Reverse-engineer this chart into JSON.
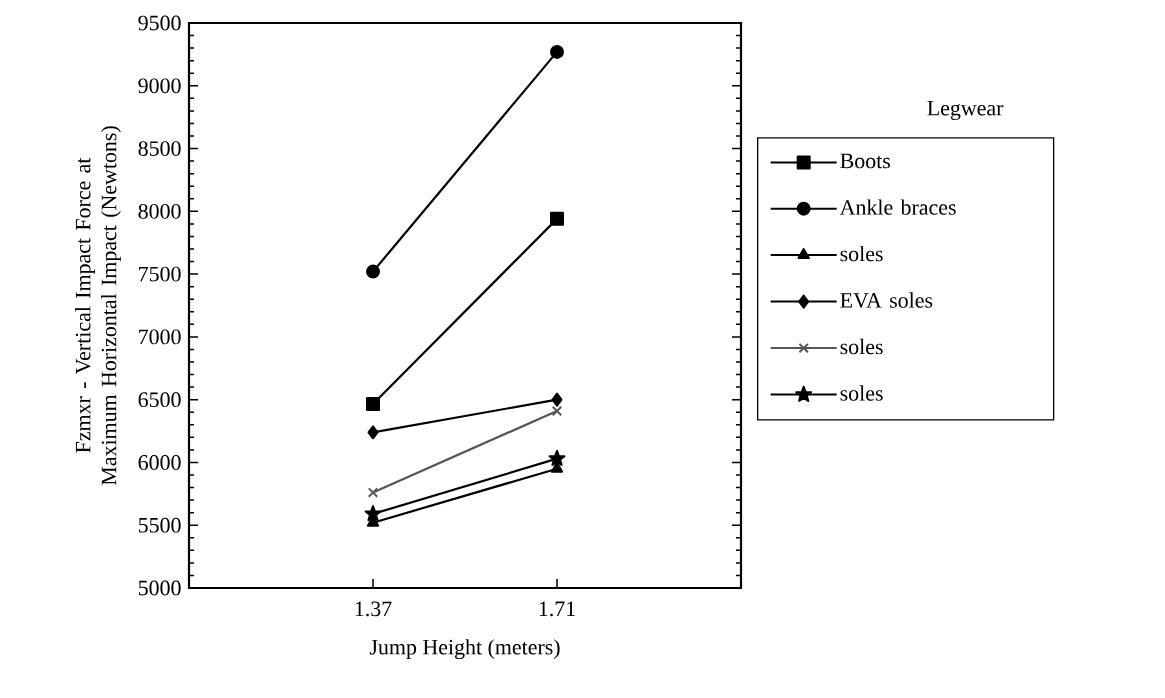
{
  "chart_data": {
    "type": "line",
    "xlabel": "Jump Height (meters)",
    "ylabel": "Fzmxr - Vertical Impact Force at Maximum Horizontal Impact (Newtons)",
    "legend_title": "Legwear",
    "legend": "right",
    "categories": [
      "1.37",
      "1.71"
    ],
    "ylim": [
      5000,
      9500
    ],
    "yticks": [
      5000,
      5500,
      6000,
      6500,
      7000,
      7500,
      8000,
      8500,
      9000,
      9500
    ],
    "series": [
      {
        "name": "Boots",
        "color": "#000000",
        "marker": "square",
        "values": [
          6465,
          7940
        ]
      },
      {
        "name": "Ankle braces",
        "color": "#000000",
        "marker": "circle",
        "values": [
          7520,
          9270
        ]
      },
      {
        "name": "soles",
        "color": "#000000",
        "marker": "triangle",
        "values": [
          5520,
          5950
        ]
      },
      {
        "name": "EVA soles",
        "color": "#000000",
        "marker": "diamond",
        "values": [
          6240,
          6500
        ]
      },
      {
        "name": "soles",
        "color": "#555555",
        "marker": "cross",
        "values": [
          5760,
          6410
        ]
      },
      {
        "name": "soles",
        "color": "#000000",
        "marker": "star",
        "values": [
          5590,
          6030
        ]
      }
    ]
  }
}
